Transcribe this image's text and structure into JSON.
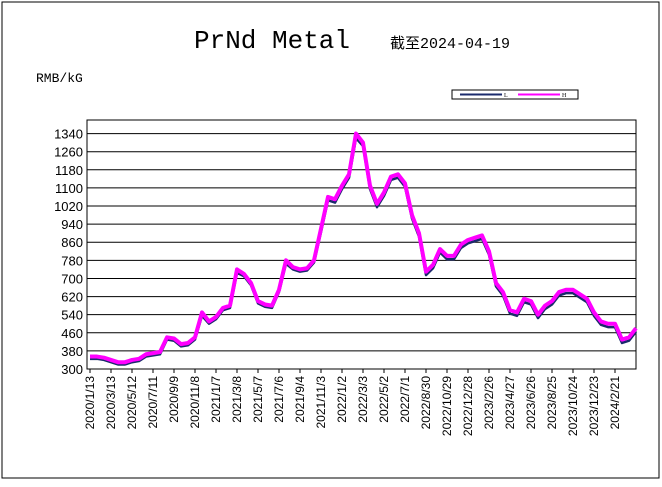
{
  "chart_data": {
    "type": "line",
    "title": "PrNd Metal",
    "subtitle": "截至2024-04-19",
    "y_label": "RMB/kG",
    "categories": [
      "2020/1/13",
      null,
      null,
      "2020/3/13",
      null,
      null,
      "2020/5/12",
      null,
      null,
      "2020/7/11",
      null,
      null,
      "2020/9/9",
      null,
      null,
      "2020/11/8",
      null,
      null,
      "2021/1/7",
      null,
      null,
      "2021/3/8",
      null,
      null,
      "2021/5/7",
      null,
      null,
      "2021/7/6",
      null,
      null,
      "2021/9/4",
      null,
      null,
      "2021/11/3",
      null,
      null,
      "2022/1/2",
      null,
      null,
      "2022/3/3",
      null,
      null,
      "2022/5/2",
      null,
      null,
      "2022/7/1",
      null,
      null,
      "2022/8/30",
      null,
      null,
      "2022/10/29",
      null,
      null,
      "2022/12/28",
      null,
      null,
      "2023/2/26",
      null,
      null,
      "2023/4/27",
      null,
      null,
      "2023/6/26",
      null,
      null,
      "2023/8/25",
      null,
      null,
      "2023/10/24",
      null,
      null,
      "2023/12/23",
      null,
      null,
      "2024/2/21",
      null,
      null,
      null
    ],
    "series": [
      {
        "name": "L",
        "color": "#1a2a6c",
        "values": [
          345,
          345,
          340,
          330,
          320,
          320,
          330,
          335,
          355,
          360,
          365,
          430,
          425,
          400,
          405,
          430,
          535,
          500,
          520,
          560,
          570,
          725,
          710,
          670,
          590,
          575,
          570,
          640,
          765,
          740,
          730,
          735,
          770,
          905,
          1045,
          1035,
          1095,
          1145,
          1320,
          1285,
          1095,
          1015,
          1065,
          1135,
          1145,
          1105,
          965,
          885,
          715,
          745,
          815,
          785,
          785,
          835,
          855,
          865,
          875,
          805,
          665,
          625,
          545,
          535,
          595,
          585,
          525,
          565,
          585,
          625,
          635,
          635,
          615,
          595,
          535,
          495,
          485,
          485,
          415,
          425,
          465
        ]
      },
      {
        "name": "H",
        "color": "#ff00ff",
        "values": [
          355,
          355,
          350,
          340,
          330,
          330,
          340,
          345,
          365,
          370,
          375,
          440,
          435,
          410,
          415,
          440,
          550,
          510,
          530,
          570,
          580,
          740,
          720,
          680,
          600,
          585,
          580,
          650,
          780,
          750,
          740,
          745,
          780,
          920,
          1060,
          1050,
          1110,
          1160,
          1340,
          1300,
          1110,
          1030,
          1080,
          1150,
          1160,
          1120,
          980,
          900,
          730,
          760,
          830,
          800,
          800,
          850,
          870,
          880,
          890,
          820,
          680,
          640,
          560,
          550,
          610,
          600,
          540,
          580,
          600,
          640,
          650,
          650,
          630,
          610,
          550,
          510,
          500,
          500,
          430,
          440,
          480
        ]
      }
    ],
    "ylim": [
      300,
      1400
    ],
    "yticks": [
      300,
      380,
      460,
      540,
      620,
      700,
      780,
      860,
      940,
      1020,
      1100,
      1180,
      1260,
      1340
    ],
    "grid": true
  }
}
